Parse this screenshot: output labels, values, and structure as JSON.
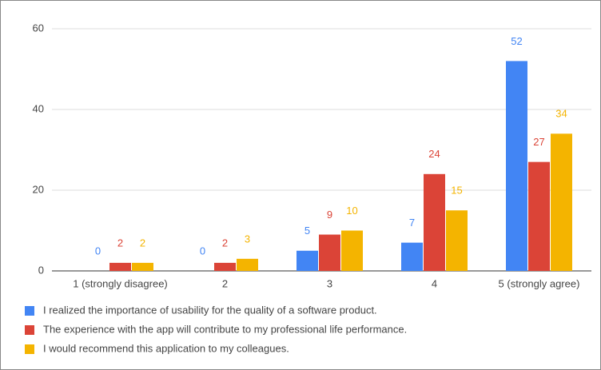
{
  "chart_data": {
    "type": "bar",
    "categories": [
      "1 (strongly disagree)",
      "2",
      "3",
      "4",
      "5 (strongly agree)"
    ],
    "series": [
      {
        "name": "I realized the importance of usability for the quality of a software product.",
        "color": "#4285f4",
        "values": [
          0,
          0,
          5,
          7,
          52
        ]
      },
      {
        "name": "The experience with the app will contribute to my professional life performance.",
        "color": "#db4437",
        "values": [
          2,
          2,
          9,
          24,
          27
        ]
      },
      {
        "name": "I would recommend this application to my colleagues.",
        "color": "#f4b400",
        "values": [
          2,
          3,
          10,
          15,
          34
        ]
      }
    ],
    "ylim": [
      0,
      60
    ],
    "yticks": [
      0,
      20,
      40,
      60
    ],
    "grid": true,
    "legend": "bottom"
  }
}
